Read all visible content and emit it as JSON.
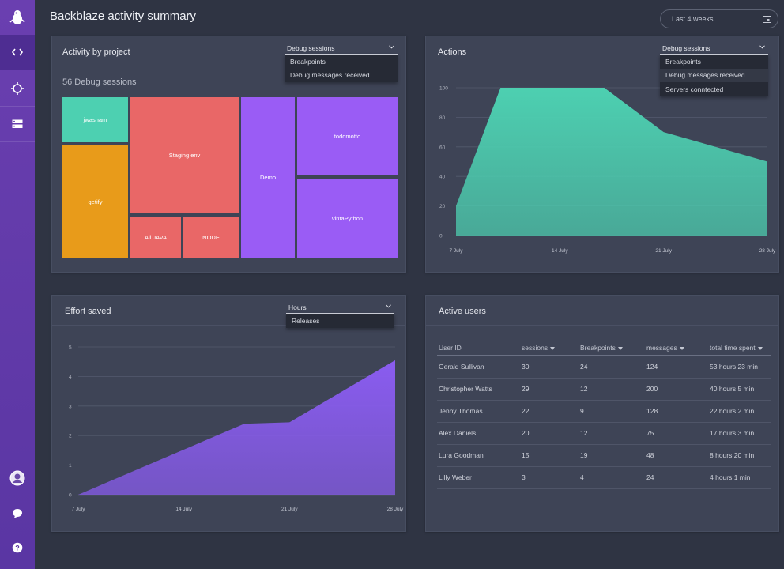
{
  "page": {
    "title": "Backblaze activity summary"
  },
  "header": {
    "date_range": "Last 4 weeks"
  },
  "sidebar": {
    "top_items": [
      {
        "name": "logo",
        "icon": "mascot-logo-icon"
      },
      {
        "name": "code",
        "icon": "code-brackets-icon",
        "active": true
      },
      {
        "name": "target",
        "icon": "crosshair-icon"
      },
      {
        "name": "servers",
        "icon": "server-icon"
      }
    ],
    "bottom_items": [
      {
        "name": "profile",
        "icon": "user-avatar-icon"
      },
      {
        "name": "chat",
        "icon": "chat-bubble-icon"
      },
      {
        "name": "help",
        "icon": "help-icon"
      }
    ]
  },
  "activity_panel": {
    "title": "Activity by project",
    "dropdown": {
      "selected": "Debug sessions",
      "options": [
        "Breakpoints",
        "Debug messages received"
      ]
    },
    "summary": "56 Debug sessions",
    "treemap": [
      {
        "label": "jwasham",
        "color": "#4dd0b1"
      },
      {
        "label": "getify",
        "color": "#e89b1a"
      },
      {
        "label": "Staging env",
        "color": "#e96767"
      },
      {
        "label": "All JAVA",
        "color": "#e96767"
      },
      {
        "label": "NODE",
        "color": "#e96767"
      },
      {
        "label": "Demo",
        "color": "#9a5cf5"
      },
      {
        "label": "toddmotto",
        "color": "#9a5cf5"
      },
      {
        "label": "vintaPython",
        "color": "#9a5cf5"
      }
    ]
  },
  "actions_panel": {
    "title": "Actions",
    "dropdown": {
      "selected": "Debug sessions",
      "options": [
        "Breakpoints",
        "Debug messages received",
        "Servers conntected"
      ],
      "highlighted": "Debug messages received"
    }
  },
  "effort_panel": {
    "title": "Effort saved",
    "dropdown": {
      "selected": "Hours",
      "options": [
        "Releases"
      ]
    }
  },
  "users_panel": {
    "title": "Active users",
    "columns": [
      "User ID",
      "sessions",
      "Breakpoints",
      "messages",
      "total time spent"
    ],
    "rows": [
      [
        "Gerald Sullivan",
        "30",
        "24",
        "124",
        "53 hours 23 min"
      ],
      [
        "Christopher Watts",
        "29",
        "12",
        "200",
        "40 hours 5 min"
      ],
      [
        "Jenny Thomas",
        "22",
        "9",
        "128",
        "22 hours 2 min"
      ],
      [
        "Alex Daniels",
        "20",
        "12",
        "75",
        "17 hours 3 min"
      ],
      [
        "Lura Goodman",
        "15",
        "19",
        "48",
        "8 hours 20 min"
      ],
      [
        "Lilly Weber",
        "3",
        "4",
        "24",
        "4 hours 1 min"
      ]
    ]
  },
  "colors": {
    "teal": "#4dd0b1",
    "purple": "#8a5cf0",
    "sidebar": "#5a36a3",
    "panel": "#3e4456"
  },
  "chart_data": [
    {
      "type": "area",
      "x": [
        "7 July",
        "10 July",
        "14 July",
        "17 July",
        "21 July",
        "28 July"
      ],
      "values": [
        20,
        100,
        100,
        100,
        70,
        50
      ],
      "xticks": [
        "7 July",
        "14 July",
        "21 July",
        "28 July"
      ],
      "yticks": [
        0,
        20,
        40,
        60,
        80,
        100
      ],
      "ylim": [
        0,
        100
      ],
      "color": "#4dd0b1",
      "grid": true
    },
    {
      "type": "area",
      "x": [
        "7 July",
        "18 July",
        "21 July",
        "28 July"
      ],
      "values": [
        0,
        2.4,
        2.45,
        4.55
      ],
      "xticks": [
        "7 July",
        "14 July",
        "21 July",
        "28 July"
      ],
      "yticks": [
        0,
        1,
        2,
        3,
        4,
        5
      ],
      "ylim": [
        0,
        5
      ],
      "color": "#8a5cf0",
      "grid": true
    }
  ]
}
